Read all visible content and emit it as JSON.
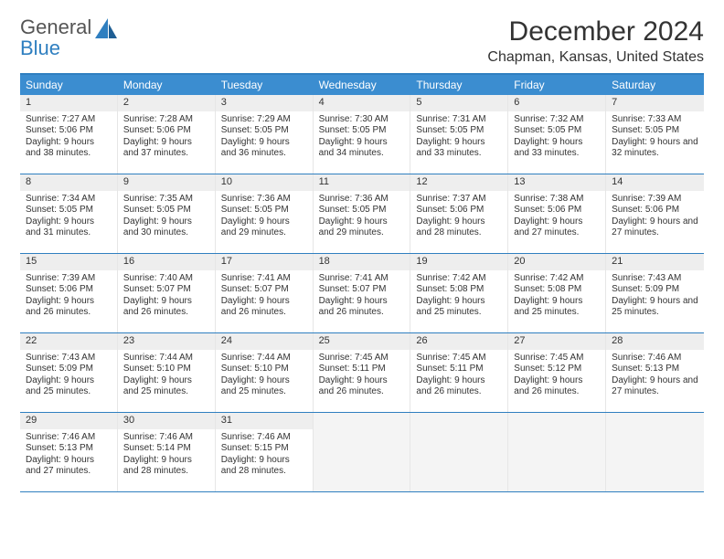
{
  "logo": {
    "line1": "General",
    "line2": "Blue"
  },
  "title": "December 2024",
  "location": "Chapman, Kansas, United States",
  "colors": {
    "header_bar": "#3b8dd0",
    "rule": "#2f7fc0",
    "daynum_bg": "#eeeeee",
    "empty_bg": "#f4f4f4",
    "text": "#333333"
  },
  "daysOfWeek": [
    "Sunday",
    "Monday",
    "Tuesday",
    "Wednesday",
    "Thursday",
    "Friday",
    "Saturday"
  ],
  "weeks": [
    [
      {
        "n": "1",
        "sr": "7:27 AM",
        "ss": "5:06 PM",
        "dl": "9 hours and 38 minutes."
      },
      {
        "n": "2",
        "sr": "7:28 AM",
        "ss": "5:06 PM",
        "dl": "9 hours and 37 minutes."
      },
      {
        "n": "3",
        "sr": "7:29 AM",
        "ss": "5:05 PM",
        "dl": "9 hours and 36 minutes."
      },
      {
        "n": "4",
        "sr": "7:30 AM",
        "ss": "5:05 PM",
        "dl": "9 hours and 34 minutes."
      },
      {
        "n": "5",
        "sr": "7:31 AM",
        "ss": "5:05 PM",
        "dl": "9 hours and 33 minutes."
      },
      {
        "n": "6",
        "sr": "7:32 AM",
        "ss": "5:05 PM",
        "dl": "9 hours and 33 minutes."
      },
      {
        "n": "7",
        "sr": "7:33 AM",
        "ss": "5:05 PM",
        "dl": "9 hours and 32 minutes."
      }
    ],
    [
      {
        "n": "8",
        "sr": "7:34 AM",
        "ss": "5:05 PM",
        "dl": "9 hours and 31 minutes."
      },
      {
        "n": "9",
        "sr": "7:35 AM",
        "ss": "5:05 PM",
        "dl": "9 hours and 30 minutes."
      },
      {
        "n": "10",
        "sr": "7:36 AM",
        "ss": "5:05 PM",
        "dl": "9 hours and 29 minutes."
      },
      {
        "n": "11",
        "sr": "7:36 AM",
        "ss": "5:05 PM",
        "dl": "9 hours and 29 minutes."
      },
      {
        "n": "12",
        "sr": "7:37 AM",
        "ss": "5:06 PM",
        "dl": "9 hours and 28 minutes."
      },
      {
        "n": "13",
        "sr": "7:38 AM",
        "ss": "5:06 PM",
        "dl": "9 hours and 27 minutes."
      },
      {
        "n": "14",
        "sr": "7:39 AM",
        "ss": "5:06 PM",
        "dl": "9 hours and 27 minutes."
      }
    ],
    [
      {
        "n": "15",
        "sr": "7:39 AM",
        "ss": "5:06 PM",
        "dl": "9 hours and 26 minutes."
      },
      {
        "n": "16",
        "sr": "7:40 AM",
        "ss": "5:07 PM",
        "dl": "9 hours and 26 minutes."
      },
      {
        "n": "17",
        "sr": "7:41 AM",
        "ss": "5:07 PM",
        "dl": "9 hours and 26 minutes."
      },
      {
        "n": "18",
        "sr": "7:41 AM",
        "ss": "5:07 PM",
        "dl": "9 hours and 26 minutes."
      },
      {
        "n": "19",
        "sr": "7:42 AM",
        "ss": "5:08 PM",
        "dl": "9 hours and 25 minutes."
      },
      {
        "n": "20",
        "sr": "7:42 AM",
        "ss": "5:08 PM",
        "dl": "9 hours and 25 minutes."
      },
      {
        "n": "21",
        "sr": "7:43 AM",
        "ss": "5:09 PM",
        "dl": "9 hours and 25 minutes."
      }
    ],
    [
      {
        "n": "22",
        "sr": "7:43 AM",
        "ss": "5:09 PM",
        "dl": "9 hours and 25 minutes."
      },
      {
        "n": "23",
        "sr": "7:44 AM",
        "ss": "5:10 PM",
        "dl": "9 hours and 25 minutes."
      },
      {
        "n": "24",
        "sr": "7:44 AM",
        "ss": "5:10 PM",
        "dl": "9 hours and 25 minutes."
      },
      {
        "n": "25",
        "sr": "7:45 AM",
        "ss": "5:11 PM",
        "dl": "9 hours and 26 minutes."
      },
      {
        "n": "26",
        "sr": "7:45 AM",
        "ss": "5:11 PM",
        "dl": "9 hours and 26 minutes."
      },
      {
        "n": "27",
        "sr": "7:45 AM",
        "ss": "5:12 PM",
        "dl": "9 hours and 26 minutes."
      },
      {
        "n": "28",
        "sr": "7:46 AM",
        "ss": "5:13 PM",
        "dl": "9 hours and 27 minutes."
      }
    ],
    [
      {
        "n": "29",
        "sr": "7:46 AM",
        "ss": "5:13 PM",
        "dl": "9 hours and 27 minutes."
      },
      {
        "n": "30",
        "sr": "7:46 AM",
        "ss": "5:14 PM",
        "dl": "9 hours and 28 minutes."
      },
      {
        "n": "31",
        "sr": "7:46 AM",
        "ss": "5:15 PM",
        "dl": "9 hours and 28 minutes."
      },
      null,
      null,
      null,
      null
    ]
  ],
  "labels": {
    "sunrise": "Sunrise:",
    "sunset": "Sunset:",
    "daylight": "Daylight:"
  }
}
